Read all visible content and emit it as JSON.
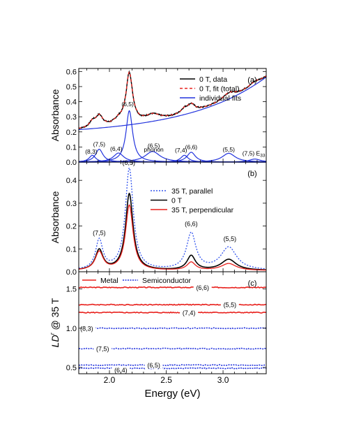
{
  "chart_data": [
    {
      "panel": "(a)",
      "type": "line",
      "xlabel": "",
      "ylabel": "Absorbance",
      "xlim": [
        1.73,
        3.38
      ],
      "ylim": [
        0.0,
        0.62
      ],
      "yticks": [
        "0.0",
        "0.1",
        "0.2",
        "0.3",
        "0.4",
        "0.5",
        "0.6"
      ],
      "legend": {
        "placement": "top-right",
        "entries": [
          {
            "label": "0 T, data",
            "color": "#000000",
            "style": "solid"
          },
          {
            "label": "0 T, fit (total)",
            "color": "#e8201c",
            "style": "dashed"
          },
          {
            "label": "individual fits",
            "color": "#2233dd",
            "style": "solid"
          }
        ]
      },
      "total": {
        "baseline": {
          "a": 0.215,
          "b": 0.035,
          "c": 0.1
        },
        "peaks": [
          {
            "x0": 1.85,
            "w": 0.03,
            "A": 0.035
          },
          {
            "x0": 1.91,
            "w": 0.04,
            "A": 0.075
          },
          {
            "x0": 2.08,
            "w": 0.05,
            "A": 0.03
          },
          {
            "x0": 2.175,
            "w": 0.035,
            "A": 0.335
          },
          {
            "x0": 2.38,
            "w": 0.08,
            "A": 0.04
          },
          {
            "x0": 2.66,
            "w": 0.04,
            "A": 0.03
          },
          {
            "x0": 2.72,
            "w": 0.04,
            "A": 0.048
          },
          {
            "x0": 3.05,
            "w": 0.07,
            "A": 0.04
          },
          {
            "x0": 3.28,
            "w": 0.06,
            "A": 0.02
          }
        ]
      },
      "fits": [
        {
          "x0": 1.85,
          "w": 0.035,
          "A": 0.045
        },
        {
          "x0": 1.91,
          "w": 0.04,
          "A": 0.085
        },
        {
          "x0": 2.08,
          "w": 0.055,
          "A": 0.06
        },
        {
          "x0": 2.175,
          "w": 0.035,
          "A": 0.34
        },
        {
          "x0": 2.38,
          "w": 0.08,
          "A": 0.07
        },
        {
          "x0": 2.66,
          "w": 0.04,
          "A": 0.045
        },
        {
          "x0": 2.72,
          "w": 0.045,
          "A": 0.065
        },
        {
          "x0": 3.05,
          "w": 0.07,
          "A": 0.058
        },
        {
          "x0": 3.28,
          "w": 0.06,
          "A": 0.02
        }
      ],
      "labels": [
        {
          "text": "(8,3)",
          "x": 1.84,
          "y": 0.055
        },
        {
          "text": "(7,5)",
          "x": 1.91,
          "y": 0.105
        },
        {
          "text": "(6,4)",
          "x": 2.06,
          "y": 0.075
        },
        {
          "text": "(6,5)",
          "x": 2.16,
          "y": 0.37
        },
        {
          "text": "(6,5)",
          "x": 2.39,
          "y": 0.095
        },
        {
          "text": "phonon",
          "x": 2.39,
          "y": 0.07
        },
        {
          "text": "(7,4)",
          "x": 2.63,
          "y": 0.065
        },
        {
          "text": "(6,6)",
          "x": 2.72,
          "y": 0.085
        },
        {
          "text": "(5,5)",
          "x": 3.05,
          "y": 0.07
        },
        {
          "text": "(7,5) E",
          "sub": "33",
          "x": 3.27,
          "y": 0.045
        }
      ]
    },
    {
      "panel": "(b)",
      "type": "line",
      "xlabel": "",
      "ylabel": "Absorbance",
      "xlim": [
        1.73,
        3.38
      ],
      "ylim": [
        0.0,
        0.48
      ],
      "yticks": [
        "0.0",
        "0.1",
        "0.2",
        "0.3",
        "0.4"
      ],
      "legend": {
        "placement": "top-right",
        "entries": [
          {
            "label": "35 T, parallel",
            "color": "#3355ee",
            "style": "dotted"
          },
          {
            "label": "0 T",
            "color": "#000000",
            "style": "solid"
          },
          {
            "label": "35 T, perpendicular",
            "color": "#e8201c",
            "style": "solid"
          }
        ]
      },
      "series": [
        {
          "name": "35 T, parallel",
          "peaks": [
            {
              "x0": 1.91,
              "w": 0.038,
              "A": 0.13
            },
            {
              "x0": 2.175,
              "w": 0.042,
              "A": 0.445
            },
            {
              "x0": 2.72,
              "w": 0.05,
              "A": 0.16
            },
            {
              "x0": 3.05,
              "w": 0.085,
              "A": 0.1
            }
          ]
        },
        {
          "name": "0 T",
          "peaks": [
            {
              "x0": 1.91,
              "w": 0.04,
              "A": 0.088
            },
            {
              "x0": 2.175,
              "w": 0.04,
              "A": 0.335
            },
            {
              "x0": 2.72,
              "w": 0.045,
              "A": 0.063
            },
            {
              "x0": 3.05,
              "w": 0.08,
              "A": 0.048
            }
          ]
        },
        {
          "name": "35 T, perpendicular",
          "peaks": [
            {
              "x0": 1.91,
              "w": 0.042,
              "A": 0.08
            },
            {
              "x0": 2.175,
              "w": 0.04,
              "A": 0.285
            },
            {
              "x0": 2.72,
              "w": 0.045,
              "A": 0.035
            },
            {
              "x0": 3.05,
              "w": 0.08,
              "A": 0.03
            }
          ]
        }
      ],
      "labels": [
        {
          "text": "(6,5)",
          "x": 2.17,
          "y": 0.468
        },
        {
          "text": "(7,5)",
          "x": 1.91,
          "y": 0.16
        },
        {
          "text": "(6,6)",
          "x": 2.72,
          "y": 0.2
        },
        {
          "text": "(5,5)",
          "x": 3.06,
          "y": 0.135
        }
      ]
    },
    {
      "panel": "(c)",
      "type": "line",
      "xlabel": "Energy (eV)",
      "ylabel": "LD",
      "ylabel_sup": "r",
      "ylabel_rest": " @ 35 T",
      "xlim": [
        1.73,
        3.38
      ],
      "ylim": [
        0.42,
        1.72
      ],
      "xticks": [
        "2.0",
        "2.5",
        "3.0"
      ],
      "yticks": [
        "0.5",
        "1.0",
        "1.5"
      ],
      "legend": {
        "placement": "top-left",
        "entries": [
          {
            "label": "Metal",
            "color": "#e8201c",
            "style": "solid"
          },
          {
            "label": "Semiconductor",
            "color": "#2233dd",
            "style": "dotted"
          }
        ]
      },
      "series": [
        {
          "name": "(6,6)",
          "kind": "metal",
          "value": 1.52
        },
        {
          "name": "(5,5)",
          "kind": "metal",
          "value": 1.3
        },
        {
          "name": "(7,4)",
          "kind": "metal",
          "value": 1.2
        },
        {
          "name": "(8,3)",
          "kind": "semiconductor",
          "value": 1.0
        },
        {
          "name": "(7,5)",
          "kind": "semiconductor",
          "value": 0.74
        },
        {
          "name": "(6,5)",
          "kind": "semiconductor",
          "value": 0.53
        },
        {
          "name": "(6,4)",
          "kind": "semiconductor",
          "value": 0.49
        }
      ],
      "labels": [
        {
          "text": "(6,6)",
          "x": 2.82,
          "y": 1.52
        },
        {
          "text": "(5,5)",
          "x": 3.06,
          "y": 1.3
        },
        {
          "text": "(7,4)",
          "x": 2.7,
          "y": 1.2
        },
        {
          "text": "(8,3)",
          "x": 1.8,
          "y": 1.0
        },
        {
          "text": "(7,5)",
          "x": 1.94,
          "y": 0.74
        },
        {
          "text": "(6,5)",
          "x": 2.39,
          "y": 0.53
        },
        {
          "text": "(6,4)",
          "x": 2.1,
          "y": 0.47
        }
      ]
    }
  ],
  "colors": {
    "metal": "#e8201c",
    "semiconductor": "#2233dd",
    "parallel": "#3355ee",
    "data": "#000000"
  }
}
